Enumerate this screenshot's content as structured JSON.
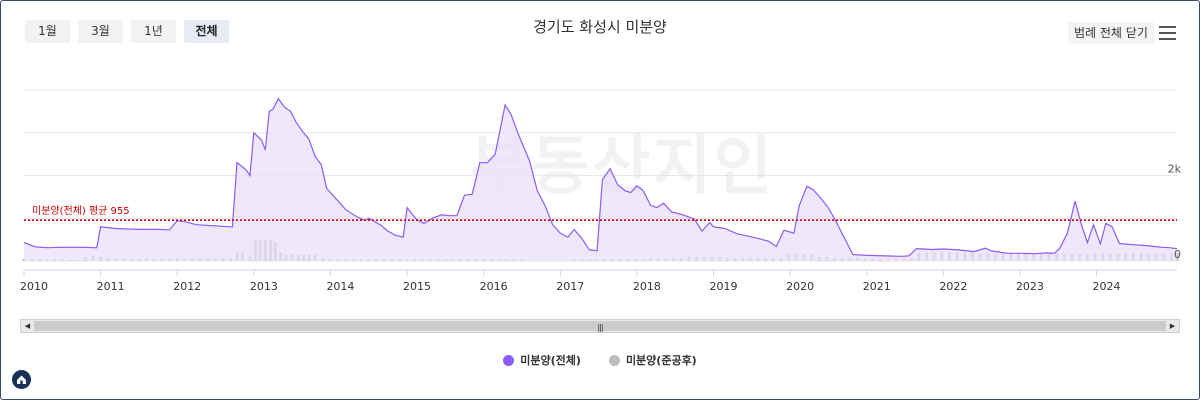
{
  "range_buttons": [
    "1월",
    "3월",
    "1년",
    "전체"
  ],
  "active_range": "전체",
  "title": "경기도 화성시 미분양",
  "legend_close_label": "범례 전체 닫기",
  "avg_line_label": "미분양(전체) 평균 955",
  "watermark": "부동산지인",
  "colors": {
    "total": "#8a5cf5",
    "completed": "#bdbdbd",
    "avg_line": "#cc0000",
    "fill": "#e9e0fb"
  },
  "chart_data": {
    "type": "line",
    "title": "경기도 화성시 미분양",
    "x_ticks": [
      "2010",
      "2011",
      "2012",
      "2013",
      "2014",
      "2015",
      "2016",
      "2017",
      "2018",
      "2019",
      "2020",
      "2021",
      "2022",
      "2023",
      "2024"
    ],
    "y_ticks": [
      "0",
      "2k"
    ],
    "ylim": [
      0,
      4000
    ],
    "average": 955,
    "series": [
      {
        "name": "미분양(전체)",
        "type": "area",
        "points": [
          [
            2010.0,
            430
          ],
          [
            2010.15,
            330
          ],
          [
            2010.3,
            310
          ],
          [
            2010.5,
            320
          ],
          [
            2010.75,
            320
          ],
          [
            2010.95,
            310
          ],
          [
            2011.0,
            800
          ],
          [
            2011.2,
            760
          ],
          [
            2011.5,
            740
          ],
          [
            2011.75,
            740
          ],
          [
            2011.9,
            730
          ],
          [
            2012.0,
            940
          ],
          [
            2012.1,
            920
          ],
          [
            2012.25,
            850
          ],
          [
            2012.5,
            820
          ],
          [
            2012.7,
            800
          ],
          [
            2012.72,
            800
          ],
          [
            2012.78,
            2300
          ],
          [
            2012.9,
            2130
          ],
          [
            2012.95,
            2000
          ],
          [
            2013.0,
            3000
          ],
          [
            2013.1,
            2830
          ],
          [
            2013.15,
            2600
          ],
          [
            2013.2,
            3500
          ],
          [
            2013.25,
            3550
          ],
          [
            2013.32,
            3800
          ],
          [
            2013.4,
            3600
          ],
          [
            2013.48,
            3500
          ],
          [
            2013.55,
            3250
          ],
          [
            2013.65,
            3000
          ],
          [
            2013.72,
            2850
          ],
          [
            2013.8,
            2450
          ],
          [
            2013.88,
            2250
          ],
          [
            2013.95,
            1700
          ],
          [
            2014.05,
            1500
          ],
          [
            2014.2,
            1200
          ],
          [
            2014.35,
            1030
          ],
          [
            2014.45,
            950
          ],
          [
            2014.5,
            1000
          ],
          [
            2014.65,
            850
          ],
          [
            2014.75,
            700
          ],
          [
            2014.85,
            600
          ],
          [
            2014.95,
            560
          ],
          [
            2015.0,
            1250
          ],
          [
            2015.12,
            980
          ],
          [
            2015.22,
            880
          ],
          [
            2015.33,
            1000
          ],
          [
            2015.45,
            1080
          ],
          [
            2015.55,
            1060
          ],
          [
            2015.65,
            1060
          ],
          [
            2015.75,
            1540
          ],
          [
            2015.85,
            1560
          ],
          [
            2015.95,
            2300
          ],
          [
            2016.05,
            2300
          ],
          [
            2016.15,
            2500
          ],
          [
            2016.28,
            3650
          ],
          [
            2016.36,
            3420
          ],
          [
            2016.45,
            2980
          ],
          [
            2016.6,
            2340
          ],
          [
            2016.7,
            1640
          ],
          [
            2016.8,
            1300
          ],
          [
            2016.9,
            850
          ],
          [
            2017.0,
            650
          ],
          [
            2017.1,
            560
          ],
          [
            2017.18,
            740
          ],
          [
            2017.28,
            530
          ],
          [
            2017.38,
            260
          ],
          [
            2017.48,
            240
          ],
          [
            2017.55,
            1900
          ],
          [
            2017.65,
            2160
          ],
          [
            2017.75,
            1780
          ],
          [
            2017.85,
            1640
          ],
          [
            2017.92,
            1600
          ],
          [
            2018.0,
            1760
          ],
          [
            2018.08,
            1650
          ],
          [
            2018.18,
            1300
          ],
          [
            2018.26,
            1250
          ],
          [
            2018.35,
            1350
          ],
          [
            2018.45,
            1150
          ],
          [
            2018.6,
            1080
          ],
          [
            2018.75,
            980
          ],
          [
            2018.85,
            700
          ],
          [
            2018.95,
            900
          ],
          [
            2019.0,
            800
          ],
          [
            2019.15,
            760
          ],
          [
            2019.3,
            640
          ],
          [
            2019.45,
            580
          ],
          [
            2019.6,
            520
          ],
          [
            2019.72,
            460
          ],
          [
            2019.82,
            340
          ],
          [
            2019.92,
            720
          ],
          [
            2020.05,
            650
          ],
          [
            2020.12,
            1300
          ],
          [
            2020.22,
            1750
          ],
          [
            2020.3,
            1670
          ],
          [
            2020.4,
            1470
          ],
          [
            2020.5,
            1240
          ],
          [
            2020.6,
            920
          ],
          [
            2020.7,
            570
          ],
          [
            2020.82,
            150
          ],
          [
            2021.0,
            130
          ],
          [
            2021.25,
            120
          ],
          [
            2021.45,
            110
          ],
          [
            2021.55,
            120
          ],
          [
            2021.65,
            290
          ],
          [
            2021.85,
            270
          ],
          [
            2022.0,
            280
          ],
          [
            2022.2,
            260
          ],
          [
            2022.4,
            220
          ],
          [
            2022.55,
            300
          ],
          [
            2022.62,
            240
          ],
          [
            2022.75,
            200
          ],
          [
            2022.85,
            180
          ],
          [
            2023.0,
            180
          ],
          [
            2023.2,
            170
          ],
          [
            2023.35,
            190
          ],
          [
            2023.45,
            180
          ],
          [
            2023.52,
            300
          ],
          [
            2023.62,
            650
          ],
          [
            2023.72,
            1400
          ],
          [
            2023.8,
            870
          ],
          [
            2023.88,
            430
          ],
          [
            2023.96,
            850
          ],
          [
            2024.05,
            400
          ],
          [
            2024.12,
            880
          ],
          [
            2024.2,
            810
          ],
          [
            2024.3,
            410
          ],
          [
            2024.5,
            380
          ],
          [
            2024.7,
            350
          ],
          [
            2024.85,
            320
          ],
          [
            2024.95,
            310
          ],
          [
            2025.05,
            290
          ]
        ]
      },
      {
        "name": "미분양(준공후)",
        "type": "bar",
        "points": [
          [
            2010.0,
            50
          ],
          [
            2010.1,
            40
          ],
          [
            2010.2,
            40
          ],
          [
            2010.3,
            40
          ],
          [
            2010.4,
            40
          ],
          [
            2010.5,
            40
          ],
          [
            2010.6,
            30
          ],
          [
            2010.7,
            30
          ],
          [
            2010.8,
            100
          ],
          [
            2010.9,
            120
          ],
          [
            2011.0,
            100
          ],
          [
            2011.1,
            80
          ],
          [
            2011.2,
            60
          ],
          [
            2011.3,
            60
          ],
          [
            2011.4,
            50
          ],
          [
            2011.5,
            50
          ],
          [
            2011.6,
            60
          ],
          [
            2011.7,
            50
          ],
          [
            2011.8,
            60
          ],
          [
            2011.9,
            50
          ],
          [
            2012.0,
            60
          ],
          [
            2012.1,
            50
          ],
          [
            2012.2,
            60
          ],
          [
            2012.3,
            60
          ],
          [
            2012.4,
            60
          ],
          [
            2012.5,
            60
          ],
          [
            2012.6,
            60
          ],
          [
            2012.7,
            70
          ],
          [
            2012.78,
            200
          ],
          [
            2012.85,
            200
          ],
          [
            2012.95,
            100
          ],
          [
            2013.02,
            500
          ],
          [
            2013.08,
            500
          ],
          [
            2013.15,
            500
          ],
          [
            2013.22,
            500
          ],
          [
            2013.28,
            450
          ],
          [
            2013.35,
            200
          ],
          [
            2013.42,
            150
          ],
          [
            2013.5,
            150
          ],
          [
            2013.58,
            150
          ],
          [
            2013.65,
            150
          ],
          [
            2013.72,
            150
          ],
          [
            2013.8,
            150
          ],
          [
            2013.9,
            80
          ],
          [
            2014.0,
            50
          ],
          [
            2014.1,
            40
          ],
          [
            2014.2,
            40
          ],
          [
            2014.3,
            40
          ],
          [
            2014.4,
            40
          ],
          [
            2014.5,
            40
          ],
          [
            2014.6,
            40
          ],
          [
            2014.7,
            40
          ],
          [
            2014.8,
            40
          ],
          [
            2014.9,
            40
          ],
          [
            2015.0,
            40
          ],
          [
            2015.1,
            40
          ],
          [
            2015.2,
            40
          ],
          [
            2015.3,
            40
          ],
          [
            2015.4,
            40
          ],
          [
            2015.5,
            40
          ],
          [
            2015.6,
            40
          ],
          [
            2015.7,
            40
          ],
          [
            2015.8,
            40
          ],
          [
            2015.9,
            40
          ],
          [
            2016.0,
            40
          ],
          [
            2016.1,
            40
          ],
          [
            2016.2,
            40
          ],
          [
            2016.3,
            40
          ],
          [
            2016.4,
            40
          ],
          [
            2016.5,
            40
          ],
          [
            2017.18,
            40
          ],
          [
            2017.28,
            40
          ],
          [
            2017.38,
            40
          ],
          [
            2017.48,
            40
          ],
          [
            2017.58,
            40
          ],
          [
            2017.68,
            40
          ],
          [
            2017.78,
            40
          ],
          [
            2017.88,
            40
          ],
          [
            2017.98,
            40
          ],
          [
            2018.08,
            40
          ],
          [
            2018.18,
            60
          ],
          [
            2018.28,
            60
          ],
          [
            2018.38,
            60
          ],
          [
            2018.48,
            80
          ],
          [
            2018.58,
            80
          ],
          [
            2018.68,
            100
          ],
          [
            2018.78,
            100
          ],
          [
            2018.88,
            100
          ],
          [
            2018.98,
            100
          ],
          [
            2019.08,
            100
          ],
          [
            2019.18,
            80
          ],
          [
            2019.28,
            80
          ],
          [
            2019.38,
            80
          ],
          [
            2019.48,
            80
          ],
          [
            2019.58,
            80
          ],
          [
            2019.68,
            80
          ],
          [
            2019.78,
            80
          ],
          [
            2019.88,
            80
          ],
          [
            2019.98,
            180
          ],
          [
            2020.08,
            180
          ],
          [
            2020.18,
            150
          ],
          [
            2020.28,
            150
          ],
          [
            2020.38,
            100
          ],
          [
            2020.48,
            100
          ],
          [
            2020.58,
            80
          ],
          [
            2020.68,
            80
          ],
          [
            2020.78,
            80
          ],
          [
            2020.88,
            80
          ],
          [
            2020.98,
            60
          ],
          [
            2021.08,
            60
          ],
          [
            2021.18,
            60
          ],
          [
            2021.28,
            60
          ],
          [
            2021.38,
            60
          ],
          [
            2021.48,
            60
          ],
          [
            2021.58,
            60
          ],
          [
            2021.68,
            200
          ],
          [
            2021.78,
            200
          ],
          [
            2021.88,
            200
          ],
          [
            2021.98,
            200
          ],
          [
            2022.08,
            200
          ],
          [
            2022.18,
            200
          ],
          [
            2022.28,
            200
          ],
          [
            2022.38,
            200
          ],
          [
            2022.48,
            180
          ],
          [
            2022.58,
            180
          ],
          [
            2022.68,
            180
          ],
          [
            2022.78,
            180
          ],
          [
            2022.88,
            180
          ],
          [
            2022.98,
            180
          ],
          [
            2023.08,
            180
          ],
          [
            2023.18,
            180
          ],
          [
            2023.28,
            180
          ],
          [
            2023.38,
            180
          ],
          [
            2023.48,
            180
          ],
          [
            2023.58,
            180
          ],
          [
            2023.68,
            180
          ],
          [
            2023.78,
            180
          ],
          [
            2023.88,
            180
          ],
          [
            2023.98,
            180
          ],
          [
            2024.08,
            180
          ],
          [
            2024.18,
            180
          ],
          [
            2024.28,
            180
          ],
          [
            2024.38,
            180
          ],
          [
            2024.48,
            180
          ],
          [
            2024.58,
            180
          ],
          [
            2024.68,
            180
          ],
          [
            2024.78,
            180
          ],
          [
            2024.88,
            180
          ],
          [
            2024.98,
            180
          ],
          [
            2025.05,
            180
          ]
        ]
      }
    ]
  }
}
